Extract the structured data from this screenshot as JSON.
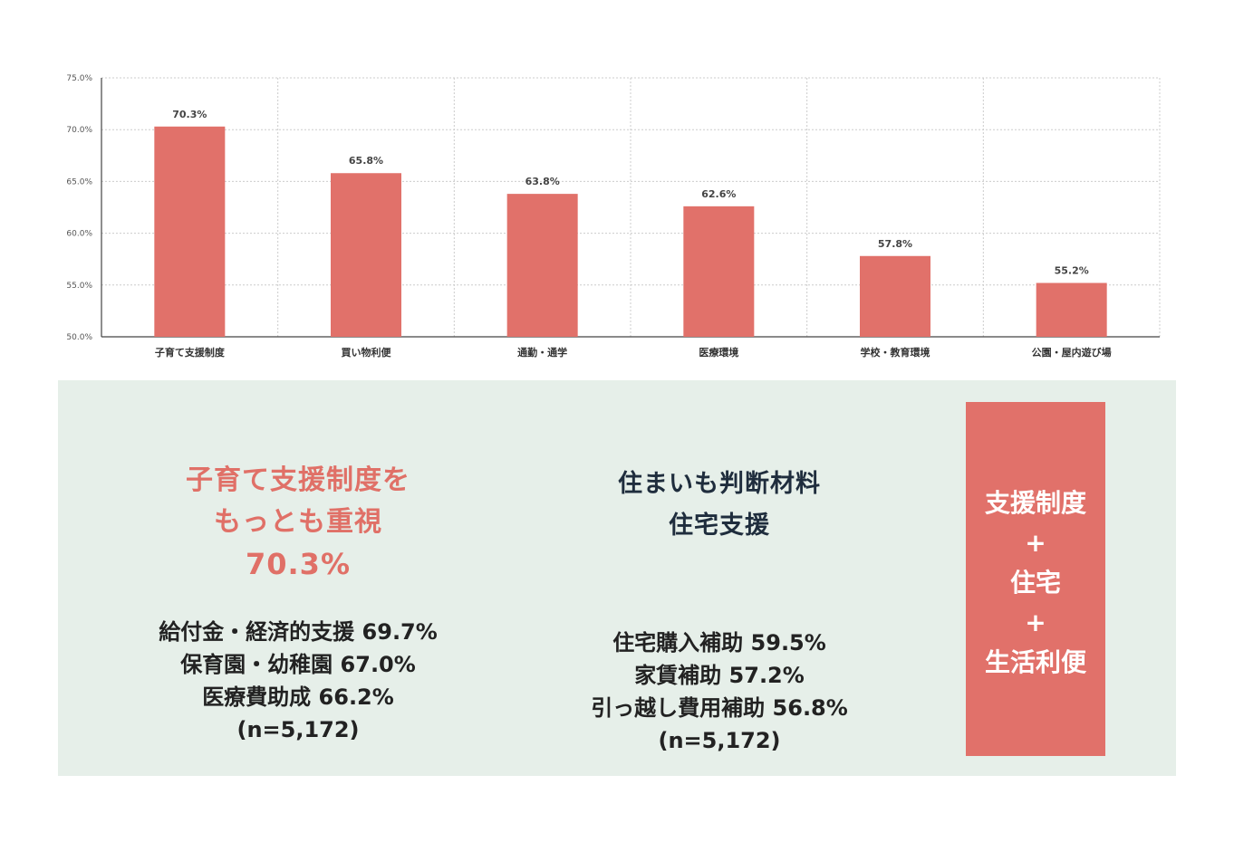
{
  "chart_data": {
    "type": "bar",
    "categories": [
      "子育て支援制度",
      "買い物利便",
      "通勤・通学",
      "医療環境",
      "学校・教育環境",
      "公園・屋内遊び場"
    ],
    "values": [
      70.3,
      65.8,
      63.8,
      62.6,
      57.8,
      55.2
    ],
    "value_labels": [
      "70.3%",
      "65.8%",
      "63.8%",
      "62.6%",
      "57.8%",
      "55.2%"
    ],
    "y_ticks": [
      "75.0%",
      "70.0%",
      "65.0%",
      "60.0%",
      "55.0%",
      "50.0%"
    ],
    "ylim": [
      50,
      75
    ],
    "grid": true,
    "bar_color": "#e1716a"
  },
  "left_panel": {
    "headline_line1": "子育て支援制度を",
    "headline_line2": "もっとも重視",
    "headline_value": "70.3%",
    "details": [
      "給付金・経済的支援 69.7%",
      "保育園・幼稚園 67.0%",
      "医療費助成 66.2%",
      "(n=5,172)"
    ]
  },
  "middle_panel": {
    "headline_line1": "住まいも判断材料",
    "headline_line2": "住宅支援",
    "details": [
      "住宅購入補助 59.5%",
      "家賃補助 57.2%",
      "引っ越し費用補助 56.8%",
      "(n=5,172)"
    ]
  },
  "summary_box": {
    "lines": [
      "支援制度",
      "+",
      "住宅",
      "+",
      "生活利便"
    ]
  },
  "colors": {
    "accent": "#e1716a",
    "panel_bg": "#e6efe9",
    "dark_text": "#1f2d3d"
  }
}
